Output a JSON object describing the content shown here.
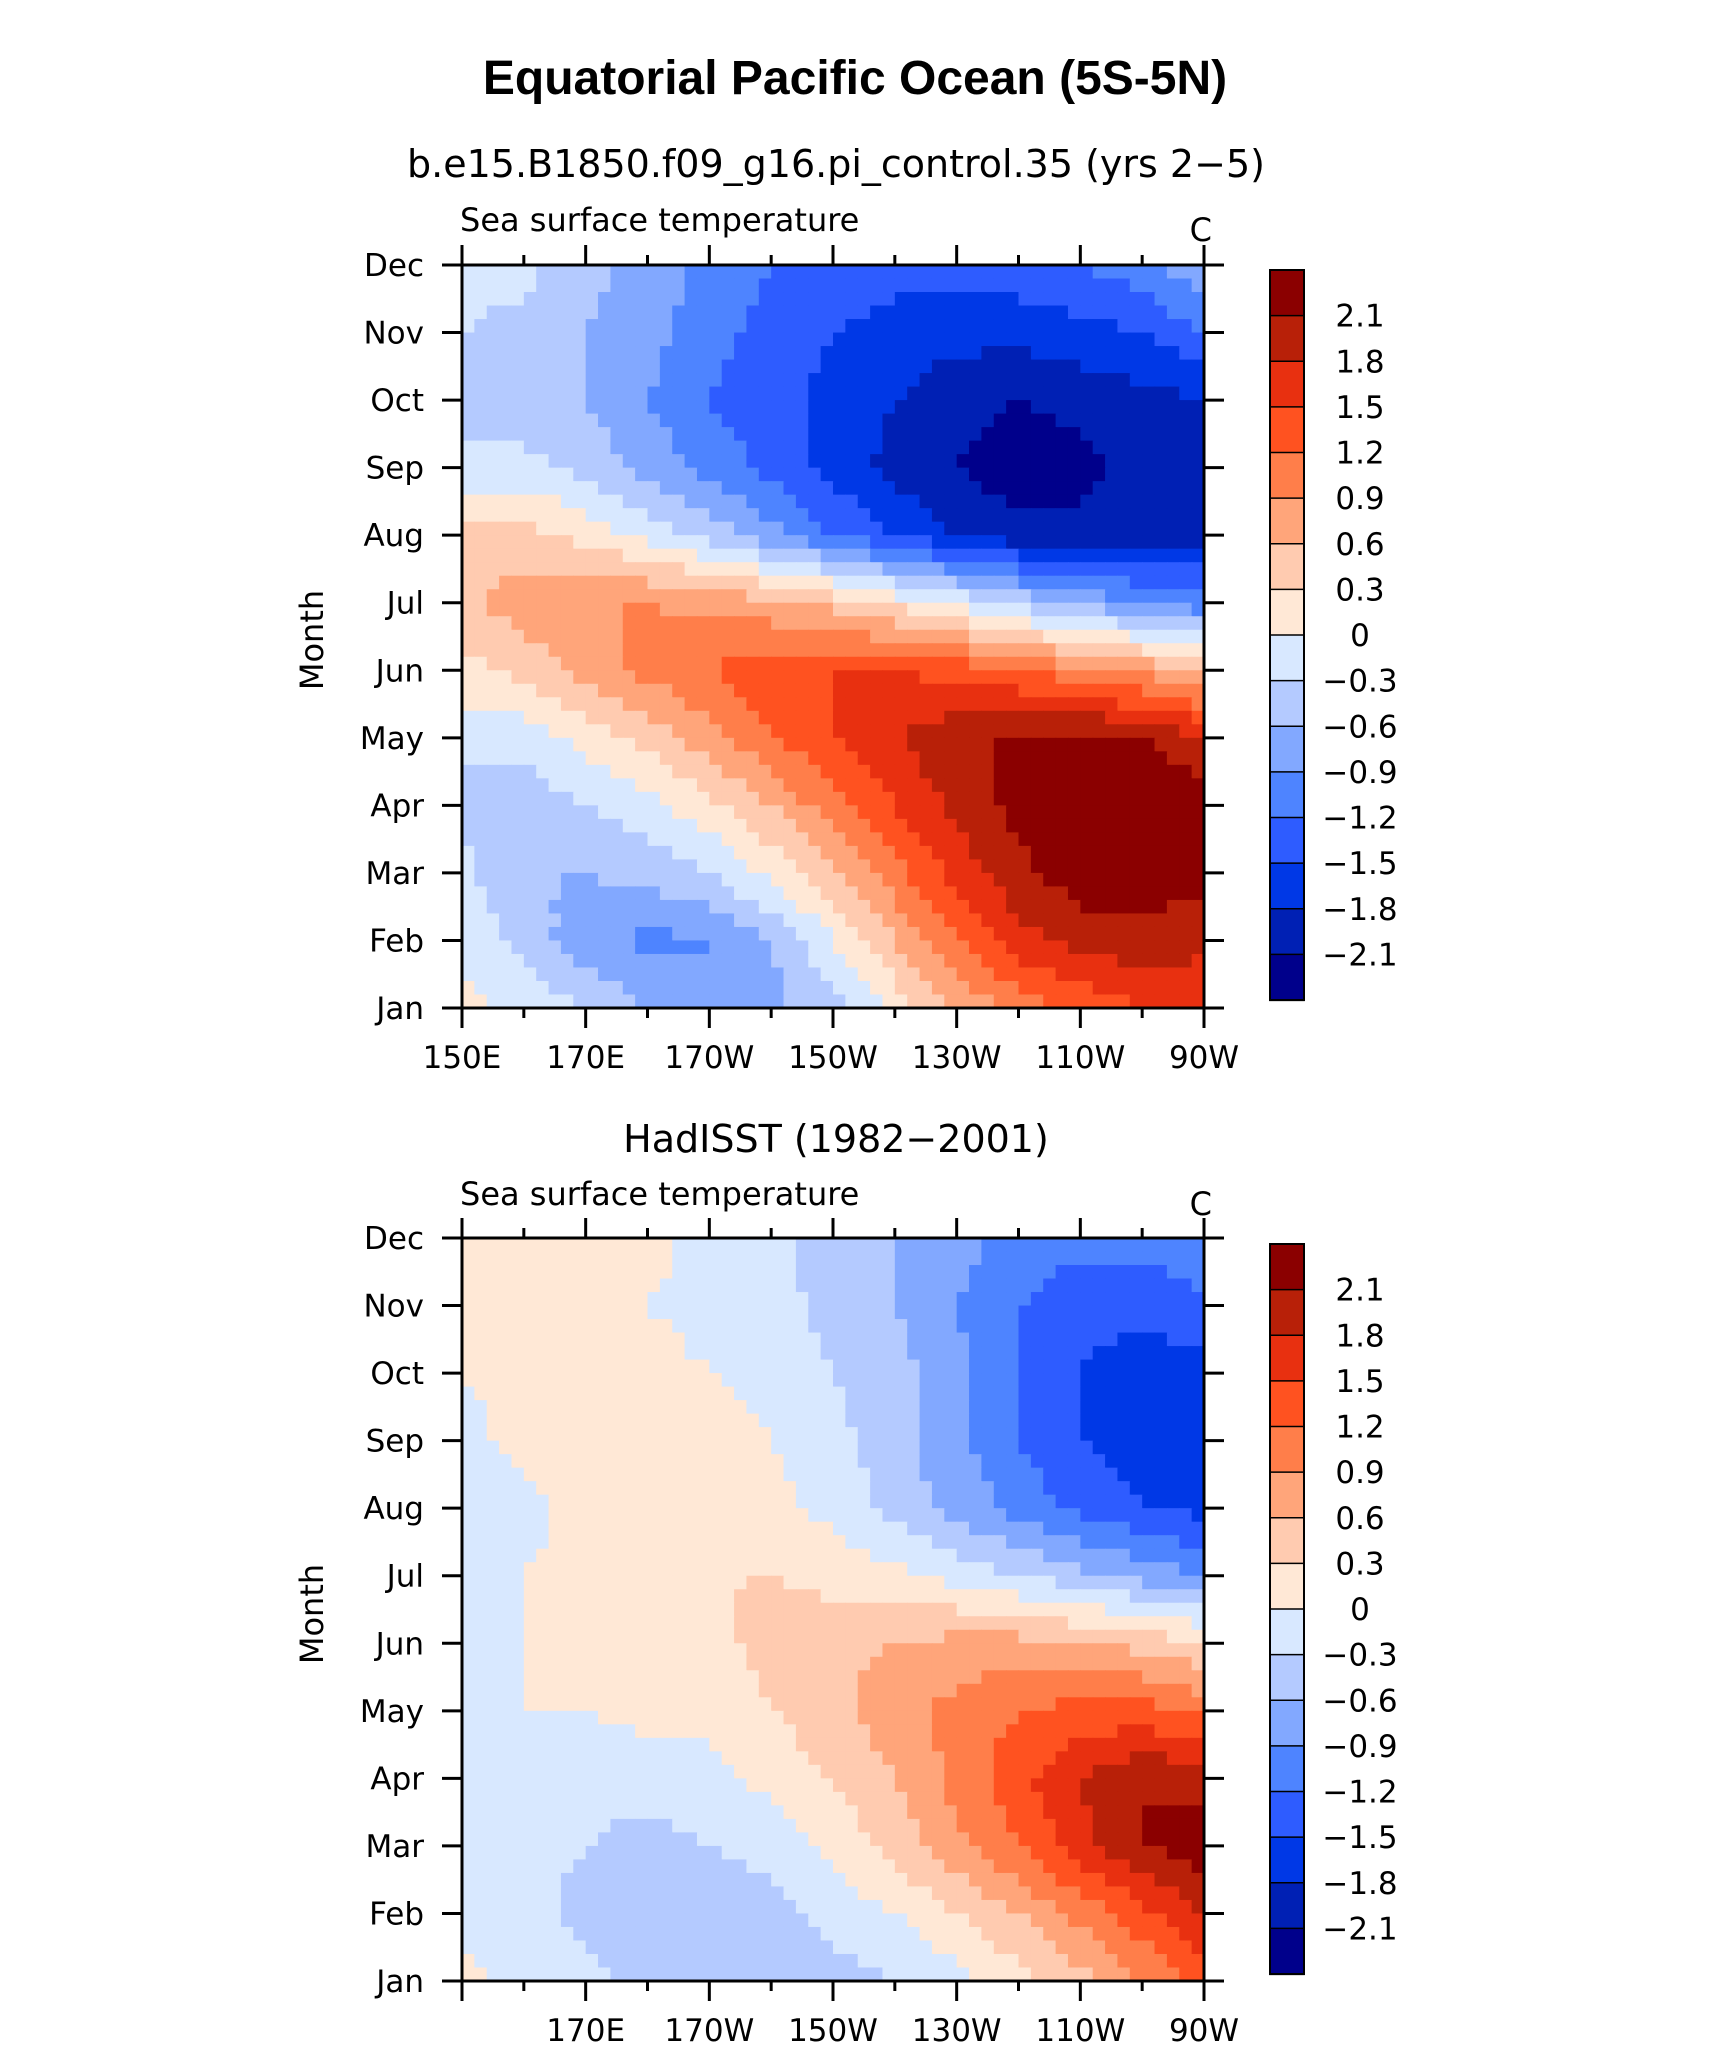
{
  "figure": {
    "title": "Equatorial Pacific Ocean (5S-5N)"
  },
  "colorbar": {
    "levels": [
      -2.4,
      -2.1,
      -1.8,
      -1.5,
      -1.2,
      -0.9,
      -0.6,
      -0.3,
      0,
      0.3,
      0.6,
      0.9,
      1.2,
      1.5,
      1.8,
      2.1,
      2.4
    ],
    "colors": [
      "#00008b",
      "#0020b4",
      "#0038e6",
      "#2e5cff",
      "#4e84ff",
      "#82a8ff",
      "#b4caff",
      "#d8e8ff",
      "#ffe8d6",
      "#ffcbb0",
      "#ffa57a",
      "#ff7e4a",
      "#ff5220",
      "#e83010",
      "#b82008",
      "#8b0000"
    ],
    "labels": [
      "2.1",
      "1.8",
      "1.5",
      "1.2",
      "0.9",
      "0.6",
      "0.3",
      "0",
      "−0.3",
      "−0.6",
      "−0.9",
      "−1.2",
      "−1.5",
      "−1.8",
      "−2.1"
    ]
  },
  "chart_data": [
    {
      "type": "heatmap",
      "title": "b.e15.B1850.f09_g16.pi_control.35 (yrs 2−5)",
      "left_label": "Sea surface temperature",
      "right_label": "C",
      "ylabel": "Month",
      "y_ticks": [
        "Jan",
        "Feb",
        "Mar",
        "Apr",
        "May",
        "Jun",
        "Jul",
        "Aug",
        "Sep",
        "Oct",
        "Nov",
        "Dec"
      ],
      "x_ticks": [
        "150E",
        "170E",
        "170W",
        "150W",
        "130W",
        "110W",
        "90W"
      ],
      "x_tick_lons": [
        150,
        170,
        190,
        210,
        230,
        250,
        270
      ],
      "xlim": [
        150,
        270
      ],
      "ylim": [
        1,
        12
      ],
      "field": {
        "months": [
          "Jan",
          "Feb",
          "Mar",
          "Apr",
          "May",
          "Jun",
          "Jul",
          "Aug",
          "Sep",
          "Oct",
          "Nov",
          "Dec"
        ],
        "lons": [
          150,
          160,
          170,
          180,
          190,
          200,
          210,
          220,
          230,
          240,
          250,
          260,
          270
        ],
        "values": [
          [
            0.1,
            -0.1,
            -0.3,
            -0.6,
            -0.9,
            -0.7,
            -0.4,
            0.1,
            0.6,
            1.0,
            1.3,
            1.5,
            1.5
          ],
          [
            -0.1,
            -0.4,
            -0.8,
            -1.0,
            -0.9,
            -0.6,
            0.0,
            0.6,
            1.2,
            1.7,
            1.9,
            2.0,
            1.9
          ],
          [
            -0.2,
            -0.6,
            -0.6,
            -0.5,
            -0.3,
            0.1,
            0.5,
            1.1,
            1.6,
            2.0,
            2.3,
            2.3,
            2.2
          ],
          [
            -0.4,
            -0.5,
            -0.3,
            -0.1,
            0.2,
            0.6,
            1.1,
            1.5,
            1.9,
            2.2,
            2.4,
            2.4,
            2.3
          ],
          [
            -0.2,
            -0.2,
            0.1,
            0.4,
            0.8,
            1.2,
            1.5,
            1.8,
            2.0,
            2.2,
            2.2,
            2.1,
            1.8
          ],
          [
            0.2,
            0.4,
            0.7,
            1.0,
            1.2,
            1.4,
            1.5,
            1.5,
            1.4,
            1.2,
            1.0,
            0.8,
            0.5
          ],
          [
            0.5,
            0.8,
            0.9,
            0.9,
            0.8,
            0.7,
            0.5,
            0.2,
            -0.1,
            -0.4,
            -0.7,
            -0.9,
            -1.1
          ],
          [
            0.4,
            0.4,
            0.2,
            -0.1,
            -0.4,
            -0.8,
            -1.2,
            -1.5,
            -1.8,
            -2.0,
            -2.0,
            -2.0,
            -1.9
          ],
          [
            -0.2,
            -0.2,
            -0.4,
            -0.7,
            -1.0,
            -1.3,
            -1.6,
            -1.9,
            -2.1,
            -2.3,
            -2.2,
            -2.0,
            -1.9
          ],
          [
            -0.4,
            -0.5,
            -0.6,
            -0.9,
            -1.2,
            -1.4,
            -1.6,
            -1.8,
            -2.0,
            -2.1,
            -2.0,
            -1.9,
            -1.8
          ],
          [
            -0.3,
            -0.4,
            -0.6,
            -0.8,
            -1.1,
            -1.3,
            -1.5,
            -1.6,
            -1.7,
            -1.7,
            -1.6,
            -1.5,
            -1.2
          ],
          [
            -0.2,
            -0.2,
            -0.5,
            -0.7,
            -1.0,
            -1.2,
            -1.3,
            -1.4,
            -1.4,
            -1.3,
            -1.2,
            -1.0,
            -0.7
          ]
        ]
      }
    },
    {
      "type": "heatmap",
      "title": "HadISST (1982−2001)",
      "left_label": "Sea surface temperature",
      "right_label": "C",
      "ylabel": "Month",
      "y_ticks": [
        "Jan",
        "Feb",
        "Mar",
        "Apr",
        "May",
        "Jun",
        "Jul",
        "Aug",
        "Sep",
        "Oct",
        "Nov",
        "Dec"
      ],
      "x_ticks": [
        "170E",
        "170W",
        "150W",
        "130W",
        "110W",
        "90W"
      ],
      "x_tick_lons": [
        170,
        190,
        210,
        230,
        250,
        270
      ],
      "xlim": [
        150,
        270
      ],
      "ylim": [
        1,
        12
      ],
      "field": {
        "months": [
          "Jan",
          "Feb",
          "Mar",
          "Apr",
          "May",
          "Jun",
          "Jul",
          "Aug",
          "Sep",
          "Oct",
          "Nov",
          "Dec"
        ],
        "lons": [
          150,
          160,
          170,
          180,
          190,
          200,
          210,
          220,
          230,
          240,
          250,
          260,
          270
        ],
        "values": [
          [
            0.1,
            -0.1,
            -0.2,
            -0.4,
            -0.5,
            -0.5,
            -0.4,
            -0.3,
            -0.1,
            0.2,
            0.5,
            0.9,
            1.3
          ],
          [
            -0.1,
            -0.2,
            -0.4,
            -0.5,
            -0.5,
            -0.4,
            -0.2,
            0.0,
            0.3,
            0.6,
            1.0,
            1.4,
            1.8
          ],
          [
            -0.2,
            -0.2,
            -0.3,
            -0.4,
            -0.3,
            -0.2,
            0.1,
            0.4,
            0.8,
            1.2,
            1.7,
            2.1,
            2.3
          ],
          [
            -0.2,
            -0.1,
            -0.2,
            -0.2,
            -0.1,
            0.1,
            0.3,
            0.6,
            1.0,
            1.4,
            1.8,
            2.1,
            2.0
          ],
          [
            -0.1,
            0.0,
            0.0,
            0.1,
            0.1,
            0.3,
            0.5,
            0.8,
            1.0,
            1.2,
            1.3,
            1.3,
            1.1
          ],
          [
            -0.1,
            0.0,
            0.1,
            0.1,
            0.2,
            0.4,
            0.5,
            0.6,
            0.7,
            0.7,
            0.6,
            0.5,
            0.3
          ],
          [
            -0.1,
            0.0,
            0.1,
            0.2,
            0.3,
            0.3,
            0.2,
            0.1,
            -0.1,
            -0.3,
            -0.5,
            -0.7,
            -0.9
          ],
          [
            -0.2,
            -0.1,
            0.1,
            0.2,
            0.2,
            0.1,
            -0.1,
            -0.4,
            -0.7,
            -1.0,
            -1.3,
            -1.5,
            -1.6
          ],
          [
            -0.1,
            0.1,
            0.2,
            0.3,
            0.2,
            0.0,
            -0.2,
            -0.5,
            -0.8,
            -1.2,
            -1.5,
            -1.7,
            -1.7
          ],
          [
            0.0,
            0.1,
            0.1,
            0.1,
            0.0,
            -0.1,
            -0.3,
            -0.5,
            -0.8,
            -1.2,
            -1.5,
            -1.7,
            -1.6
          ],
          [
            0.1,
            0.1,
            0.1,
            0.0,
            -0.1,
            -0.2,
            -0.4,
            -0.6,
            -0.9,
            -1.2,
            -1.4,
            -1.4,
            -1.3
          ],
          [
            0.1,
            0.1,
            0.1,
            0.1,
            -0.1,
            -0.2,
            -0.4,
            -0.6,
            -0.8,
            -1.0,
            -1.1,
            -1.1,
            -0.9
          ]
        ]
      }
    }
  ]
}
